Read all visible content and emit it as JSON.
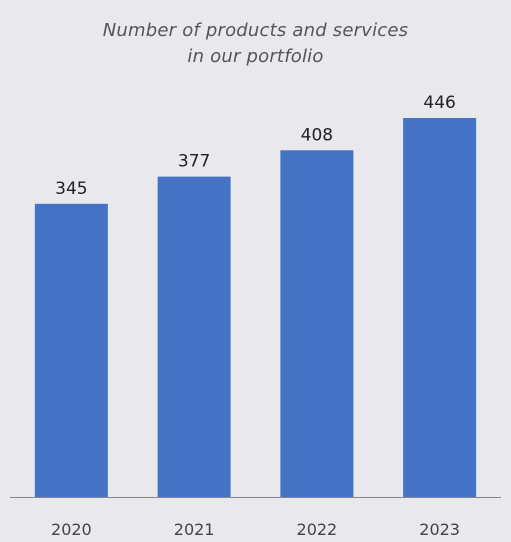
{
  "chart_data": {
    "type": "bar",
    "title_line1": "Number of products and services",
    "title_line2": "in our portfolio",
    "xlabel": "",
    "ylabel": "",
    "categories": [
      "2020",
      "2021",
      "2022",
      "2023"
    ],
    "values": [
      345,
      377,
      408,
      446
    ],
    "ylim": [
      0,
      470
    ],
    "grid": false,
    "legend": "none",
    "bar_color": "#4472c4",
    "axis_color": "#888888"
  }
}
